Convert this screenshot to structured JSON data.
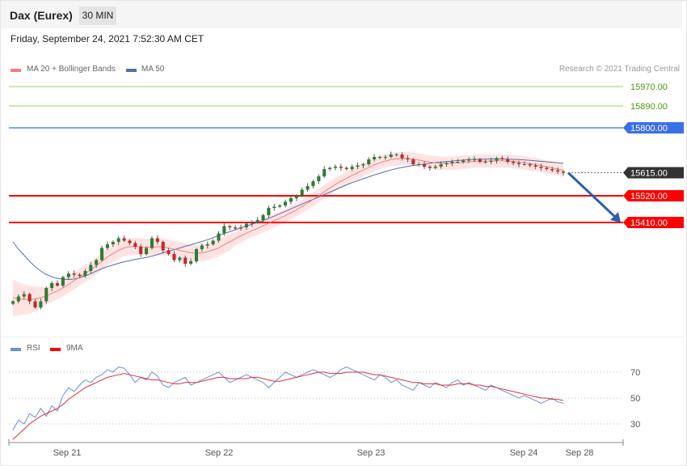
{
  "header": {
    "instrument": "Dax (Eurex)",
    "timeframe": "30 MIN",
    "datetime": "Friday, September 24, 2021 7:52:30 AM CET"
  },
  "legend": {
    "ma20_label": "MA 20 + Bollinger Bands",
    "ma50_label": "MA 50",
    "rsi_label": "RSI",
    "ma9_label": "9MA",
    "credit": "Research © 2021 Trading Central"
  },
  "colors": {
    "ma20": "#f08080",
    "ma50": "#5570a8",
    "bands": "#ffd9d9",
    "up_candle": "#2e7d32",
    "down_candle": "#c62828",
    "target_line": "#99cc66",
    "target_text": "#4a9a10",
    "pivot": "#3b6fe8",
    "support": "#ff0000",
    "current": "#333333",
    "arrow": "#2f5fa8",
    "rsi": "#6b8fd6",
    "rsi_ma": "#e03030"
  },
  "chart_data": [
    {
      "type": "candlestick",
      "title": "Dax (Eurex)",
      "timeframe": "30 MIN",
      "x_ticks": [
        "Sep 21",
        "Sep 22",
        "Sep 23",
        "Sep 24",
        "Sep 28"
      ],
      "levels": [
        {
          "value": 15970.0,
          "label": "15970.00",
          "role": "target"
        },
        {
          "value": 15890.0,
          "label": "15890.00",
          "role": "target"
        },
        {
          "value": 15800.0,
          "label": "15800.00",
          "role": "pivot"
        },
        {
          "value": 15615.0,
          "label": "15615.00",
          "role": "current"
        },
        {
          "value": 15520.0,
          "label": "15520.00",
          "role": "support"
        },
        {
          "value": 15410.0,
          "label": "15410.00",
          "role": "support"
        }
      ],
      "forecast_arrow": {
        "from": 15615,
        "to": 15410,
        "direction": "down"
      },
      "close": [
        15085,
        15105,
        15115,
        15085,
        15060,
        15085,
        15140,
        15160,
        15150,
        15185,
        15200,
        15195,
        15190,
        15210,
        15235,
        15255,
        15305,
        15320,
        15330,
        15345,
        15335,
        15325,
        15310,
        15280,
        15305,
        15345,
        15330,
        15295,
        15280,
        15255,
        15265,
        15240,
        15250,
        15300,
        15315,
        15320,
        15335,
        15365,
        15395,
        15390,
        15385,
        15390,
        15405,
        15410,
        15420,
        15440,
        15470,
        15475,
        15480,
        15495,
        15510,
        15520,
        15545,
        15560,
        15580,
        15600,
        15630,
        15635,
        15640,
        15635,
        15630,
        15640,
        15645,
        15650,
        15670,
        15680,
        15680,
        15680,
        15690,
        15690,
        15675,
        15670,
        15650,
        15650,
        15640,
        15635,
        15640,
        15650,
        15655,
        15660,
        15660,
        15665,
        15670,
        15670,
        15660,
        15660,
        15665,
        15675,
        15670,
        15660,
        15655,
        15650,
        15650,
        15645,
        15640,
        15635,
        15630,
        15625,
        15620,
        15615
      ],
      "ma20": [
        15100,
        15095,
        15093,
        15092,
        15095,
        15100,
        15108,
        15118,
        15128,
        15140,
        15155,
        15170,
        15185,
        15200,
        15215,
        15232,
        15250,
        15268,
        15282,
        15295,
        15305,
        15310,
        15312,
        15310,
        15308,
        15308,
        15310,
        15310,
        15305,
        15300,
        15295,
        15290,
        15285,
        15283,
        15285,
        15290,
        15297,
        15305,
        15318,
        15330,
        15343,
        15355,
        15366,
        15376,
        15386,
        15396,
        15407,
        15418,
        15428,
        15438,
        15450,
        15462,
        15476,
        15490,
        15505,
        15520,
        15537,
        15552,
        15567,
        15580,
        15592,
        15604,
        15615,
        15626,
        15637,
        15648,
        15656,
        15663,
        15669,
        15672,
        15674,
        15673,
        15670,
        15667,
        15663,
        15659,
        15656,
        15654,
        15653,
        15654,
        15656,
        15658,
        15660,
        15662,
        15663,
        15663,
        15663,
        15664,
        15664,
        15663,
        15661,
        15659,
        15656,
        15652,
        15648,
        15644,
        15640,
        15635,
        15630,
        15625
      ],
      "ma50": [
        15330,
        15300,
        15275,
        15250,
        15228,
        15210,
        15196,
        15186,
        15180,
        15176,
        15175,
        15177,
        15182,
        15190,
        15199,
        15210,
        15220,
        15228,
        15235,
        15242,
        15248,
        15253,
        15258,
        15262,
        15266,
        15271,
        15278,
        15285,
        15291,
        15298,
        15305,
        15312,
        15318,
        15325,
        15332,
        15339,
        15347,
        15356,
        15364,
        15372,
        15380,
        15388,
        15396,
        15403,
        15410,
        15418,
        15427,
        15436,
        15446,
        15456,
        15466,
        15476,
        15486,
        15496,
        15505,
        15515,
        15525,
        15535,
        15545,
        15555,
        15565,
        15574,
        15582,
        15590,
        15598,
        15606,
        15613,
        15620,
        15626,
        15632,
        15637,
        15641,
        15645,
        15648,
        15651,
        15654,
        15657,
        15659,
        15661,
        15663,
        15665,
        15667,
        15669,
        15670,
        15671,
        15671,
        15672,
        15672,
        15672,
        15671,
        15670,
        15669,
        15668,
        15666,
        15664,
        15662,
        15660,
        15658,
        15656,
        15654
      ],
      "y_range": [
        15030,
        16020
      ]
    },
    {
      "type": "line",
      "series_labels": [
        "RSI",
        "9MA"
      ],
      "y_ticks": [
        "70",
        "50",
        "30"
      ],
      "y_range": [
        15,
        85
      ],
      "rsi": [
        25,
        33,
        30,
        38,
        35,
        42,
        36,
        44,
        40,
        52,
        58,
        55,
        60,
        64,
        62,
        66,
        68,
        72,
        70,
        74,
        73,
        68,
        62,
        66,
        64,
        70,
        67,
        60,
        58,
        62,
        64,
        66,
        60,
        62,
        64,
        66,
        68,
        70,
        66,
        62,
        64,
        66,
        68,
        66,
        64,
        62,
        58,
        62,
        66,
        70,
        68,
        66,
        68,
        70,
        72,
        70,
        68,
        66,
        68,
        72,
        74,
        72,
        70,
        68,
        66,
        64,
        68,
        66,
        62,
        64,
        60,
        58,
        56,
        62,
        60,
        58,
        62,
        60,
        58,
        62,
        64,
        60,
        62,
        60,
        58,
        56,
        60,
        58,
        56,
        54,
        52,
        50,
        52,
        50,
        48,
        46,
        48,
        50,
        47,
        46
      ],
      "ma9": [
        18,
        22,
        26,
        30,
        33,
        36,
        38,
        40,
        42,
        45,
        49,
        52,
        55,
        58,
        60,
        62,
        64,
        66,
        67,
        68,
        69,
        68,
        67,
        66,
        65,
        64,
        64,
        63,
        62,
        61,
        61,
        62,
        62,
        62,
        63,
        64,
        65,
        66,
        66,
        65,
        65,
        65,
        65,
        66,
        66,
        65,
        64,
        63,
        63,
        64,
        65,
        66,
        67,
        68,
        69,
        70,
        70,
        69,
        69,
        69,
        70,
        70,
        70,
        70,
        69,
        68,
        68,
        67,
        66,
        65,
        64,
        63,
        62,
        62,
        61,
        61,
        61,
        60,
        60,
        60,
        61,
        61,
        61,
        60,
        60,
        59,
        59,
        58,
        57,
        56,
        55,
        54,
        53,
        52,
        51,
        50,
        50,
        49,
        49,
        48
      ]
    }
  ]
}
